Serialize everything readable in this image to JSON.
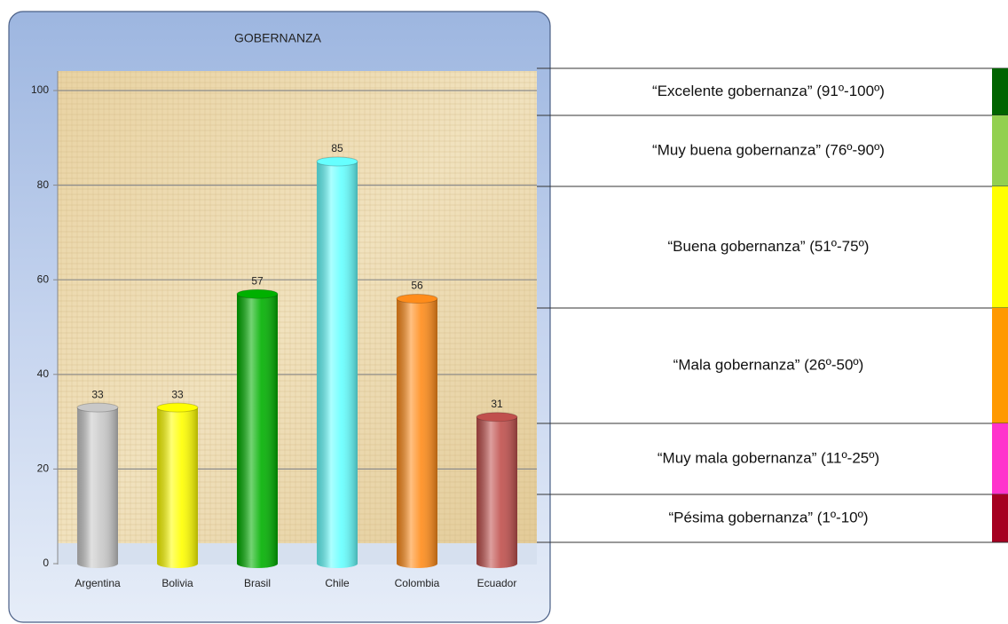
{
  "chart_data": {
    "type": "bar",
    "title": "GOBERNANZA",
    "categories": [
      "Argentina",
      "Bolivia",
      "Brasil",
      "Chile",
      "Colombia",
      "Ecuador"
    ],
    "values": [
      33,
      33,
      57,
      85,
      56,
      31
    ],
    "colors": [
      "#c8c8c8",
      "#ffff00",
      "#00b000",
      "#66ffff",
      "#ff8c1a",
      "#c0504d"
    ],
    "ylim": [
      0,
      100
    ],
    "yticks": [
      0,
      20,
      40,
      60,
      80,
      100
    ],
    "grid": true
  },
  "legend_table": {
    "rows": [
      {
        "label": "“Excelente gobernanza” (91º-100º)",
        "color": "#006400"
      },
      {
        "label": "“Muy buena gobernanza” (76º-90º)",
        "color": "#92d050"
      },
      {
        "label": "“Buena gobernanza” (51º-75º)",
        "color": "#ffff00"
      },
      {
        "label": "“Mala gobernanza” (26º-50º)",
        "color": "#ff9900"
      },
      {
        "label": "“Muy mala gobernanza” (11º-25º)",
        "color": "#ff33cc"
      },
      {
        "label": "“Pésima gobernanza” (1º-10º)",
        "color": "#a50021"
      }
    ]
  }
}
